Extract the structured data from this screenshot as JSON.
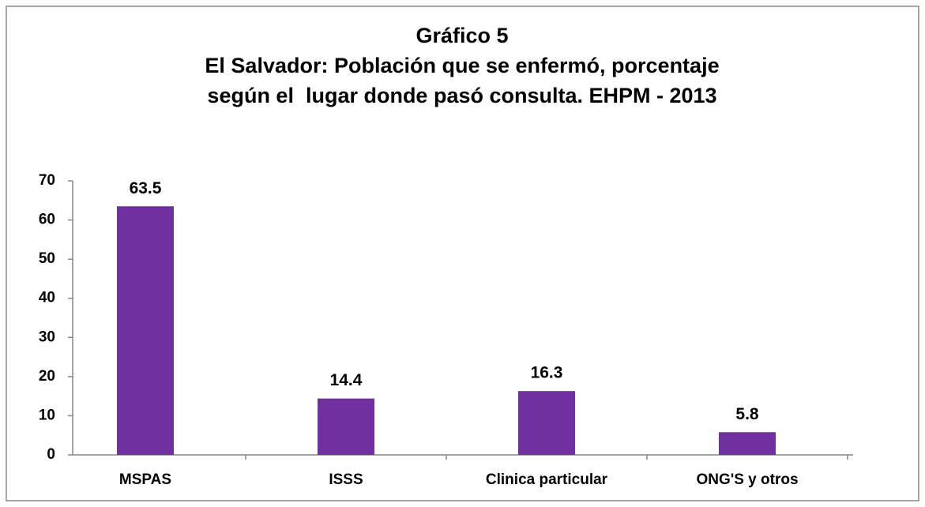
{
  "chart_data": {
    "type": "bar",
    "title": [
      "Gráfico 5",
      "El Salvador: Población que se enfermó, porcentaje",
      "según el  lugar donde pasó consulta. EHPM - 2013"
    ],
    "categories": [
      "MSPAS",
      "ISSS",
      "Clinica particular",
      "ONG'S y otros"
    ],
    "values": [
      63.5,
      14.4,
      16.3,
      5.8
    ],
    "color": "#7030a0",
    "ylim": [
      0,
      70
    ],
    "yticks": [
      0,
      10,
      20,
      30,
      40,
      50,
      60,
      70
    ],
    "grid": false
  }
}
